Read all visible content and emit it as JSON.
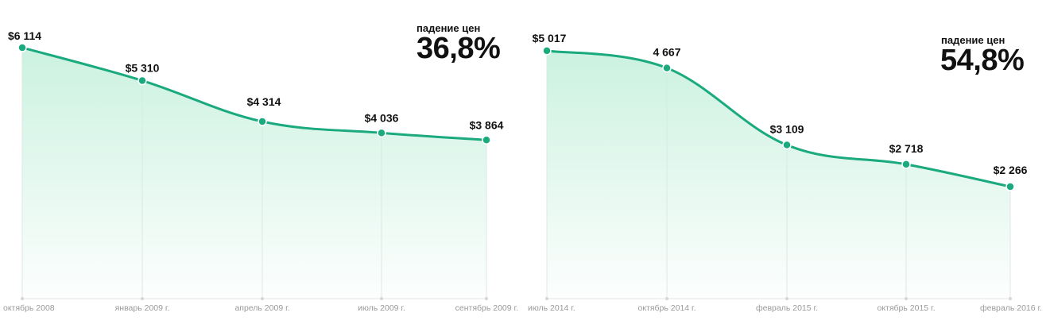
{
  "charts": [
    {
      "summary_label": "падение цен",
      "summary_value": "36,8%",
      "chart_data": {
        "type": "area",
        "categories": [
          "октябрь 2008",
          "январь 2009 г.",
          "апрель 2009 г.",
          "июль 2009 г.",
          "сентябрь 2009 г."
        ],
        "values": [
          6114,
          5310,
          4314,
          4036,
          3864
        ],
        "data_labels": [
          "$6 114",
          "$5 310",
          "$4 314",
          "$4 036",
          "$3 864"
        ],
        "ylim": [
          0,
          6500
        ],
        "grid": "vertical",
        "title": "",
        "xlabel": "",
        "ylabel": ""
      }
    },
    {
      "summary_label": "падение цен",
      "summary_value": "54,8%",
      "chart_data": {
        "type": "area",
        "categories": [
          "июль 2014 г.",
          "октябрь 2014 г.",
          "февраль 2015 г.",
          "октябрь 2015 г.",
          "февраль 2016 г."
        ],
        "values": [
          5017,
          4667,
          3109,
          2718,
          2266
        ],
        "data_labels": [
          "$5 017",
          "4 667",
          "$3 109",
          "$2 718",
          "$2 266"
        ],
        "ylim": [
          0,
          5400
        ],
        "grid": "vertical",
        "title": "",
        "xlabel": "",
        "ylabel": ""
      }
    }
  ],
  "colors": {
    "line": "#1aaa7e",
    "fill_top": "#c9f1df",
    "grid": "#e4e4e4",
    "axis_label": "#9a9a9a",
    "text": "#111111"
  }
}
